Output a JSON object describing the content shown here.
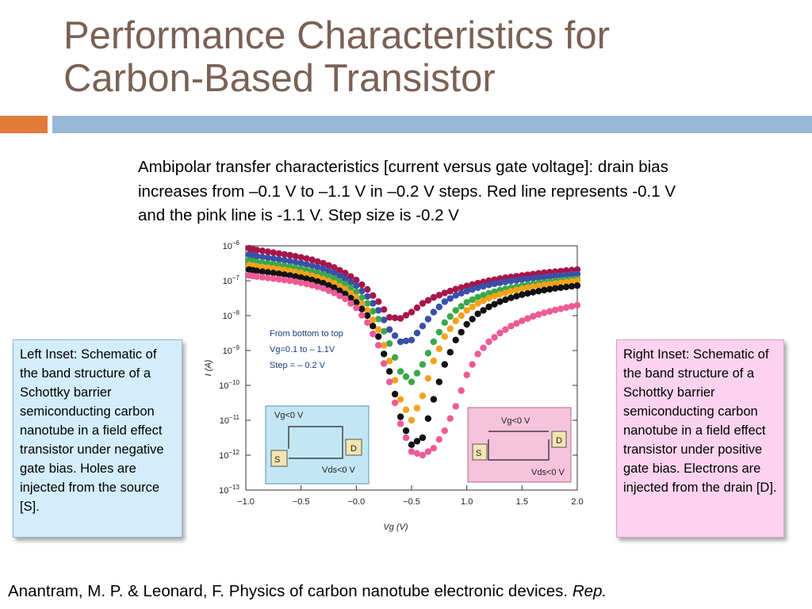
{
  "slide": {
    "title_line1": "Performance Characteristics for",
    "title_line2": "Carbon-Based Transistor",
    "caption": "Ambipolar transfer characteristics [current versus gate voltage]: drain bias increases from –0.1 V to –1.1 V in –0.2 V steps. Red line represents -0.1 V and the pink line is -1.1 V. Step size is -0.2 V",
    "left_inset_text": "Left Inset: Schematic of the band structure of a Schottky barrier semiconducting carbon nanotube in a field effect transistor under negative gate bias. Holes are injected from the source [S].",
    "right_inset_text": "Right Inset: Schematic of the band structure of a Schottky barrier semiconducting carbon nanotube in a field effect transistor under positive gate bias. Electrons are injected from the drain [D].",
    "citation_text": "Anantram, M. P. & Leonard, F. Physics of carbon nanotube electronic devices.",
    "citation_italic": "Rep.",
    "colors": {
      "title": "#7a6155",
      "accent_orange": "#e07b39",
      "accent_blue": "#98b8d8",
      "left_inset_bg": "#d3edfa",
      "right_inset_bg": "#fbd3ee"
    }
  },
  "chart_data": {
    "type": "scatter",
    "title": "",
    "xlabel": "V_g (V)",
    "ylabel": "I (A)",
    "xlim": [
      -1.0,
      2.0
    ],
    "ylim": [
      -13,
      -6
    ],
    "yscale": "log",
    "x_ticks": [
      "−1.0",
      "−0.5",
      "−0.0",
      "−0.5",
      "1.0",
      "1.5",
      "2.0"
    ],
    "y_ticks": [
      -13,
      -12,
      -11,
      -10,
      -9,
      -8,
      -7,
      -6
    ],
    "annotation_lines": [
      "From bottom to top",
      "Vg=0.1 to – 1.1V",
      "Step = – 0.2 V"
    ],
    "left_inset_schematic": {
      "gate_label": "Vg<0 V",
      "source_label": "S",
      "drain_label": "D",
      "bias_label": "Vds<0 V"
    },
    "right_inset_schematic": {
      "gate_label": "Vg<0 V",
      "source_label": "S",
      "drain_label": "D",
      "bias_label": "Vds<0 V"
    },
    "series": [
      {
        "color": "#a8154a",
        "x": [
          -0.97,
          -0.9,
          -0.8,
          -0.7,
          -0.6,
          -0.5,
          -0.4,
          -0.3,
          -0.2,
          -0.1,
          0.0,
          0.1,
          0.2,
          0.3,
          0.4,
          0.5,
          0.6,
          0.7,
          0.8,
          0.9,
          1.0,
          1.1,
          1.2,
          1.3,
          1.4,
          1.5,
          1.6,
          1.7,
          1.8,
          1.9,
          2.0
        ],
        "log_y": [
          -6.07,
          -6.12,
          -6.17,
          -6.22,
          -6.27,
          -6.33,
          -6.4,
          -6.5,
          -6.62,
          -6.78,
          -6.98,
          -7.25,
          -7.6,
          -8.05,
          -8.08,
          -7.9,
          -7.65,
          -7.48,
          -7.35,
          -7.24,
          -7.15,
          -7.07,
          -7.0,
          -6.94,
          -6.89,
          -6.85,
          -6.81,
          -6.77,
          -6.74,
          -6.71,
          -6.68
        ]
      },
      {
        "color": "#3a4fa8",
        "x": [
          -0.97,
          -0.9,
          -0.8,
          -0.7,
          -0.6,
          -0.5,
          -0.4,
          -0.3,
          -0.2,
          -0.1,
          0.0,
          0.1,
          0.2,
          0.3,
          0.4,
          0.5,
          0.6,
          0.7,
          0.8,
          0.9,
          1.0,
          1.1,
          1.2,
          1.3,
          1.4,
          1.5,
          1.6,
          1.7,
          1.8,
          1.9,
          2.0
        ],
        "log_y": [
          -6.25,
          -6.3,
          -6.34,
          -6.39,
          -6.44,
          -6.5,
          -6.57,
          -6.66,
          -6.78,
          -6.94,
          -7.14,
          -7.45,
          -7.85,
          -8.4,
          -8.75,
          -8.7,
          -8.3,
          -7.9,
          -7.6,
          -7.42,
          -7.3,
          -7.2,
          -7.12,
          -7.06,
          -7.01,
          -6.97,
          -6.93,
          -6.9,
          -6.87,
          -6.84,
          -6.81
        ]
      },
      {
        "color": "#3aa84a",
        "x": [
          -0.97,
          -0.9,
          -0.8,
          -0.7,
          -0.6,
          -0.5,
          -0.4,
          -0.3,
          -0.2,
          -0.1,
          0.0,
          0.1,
          0.2,
          0.3,
          0.4,
          0.5,
          0.6,
          0.7,
          0.8,
          0.9,
          1.0,
          1.1,
          1.2,
          1.3,
          1.4,
          1.5,
          1.6,
          1.7,
          1.8,
          1.9,
          2.0
        ],
        "log_y": [
          -6.42,
          -6.46,
          -6.5,
          -6.55,
          -6.6,
          -6.66,
          -6.73,
          -6.82,
          -6.94,
          -7.1,
          -7.32,
          -7.65,
          -8.1,
          -8.8,
          -9.6,
          -9.9,
          -9.4,
          -8.75,
          -8.2,
          -7.85,
          -7.62,
          -7.47,
          -7.36,
          -7.27,
          -7.2,
          -7.14,
          -7.09,
          -7.05,
          -7.01,
          -6.98,
          -6.95
        ]
      },
      {
        "color": "#f5a21a",
        "x": [
          -0.97,
          -0.9,
          -0.8,
          -0.7,
          -0.6,
          -0.5,
          -0.4,
          -0.3,
          -0.2,
          -0.1,
          0.0,
          0.1,
          0.2,
          0.3,
          0.4,
          0.5,
          0.6,
          0.7,
          0.8,
          0.9,
          1.0,
          1.1,
          1.2,
          1.3,
          1.4,
          1.5,
          1.6,
          1.7,
          1.8,
          1.9,
          2.0
        ],
        "log_y": [
          -6.55,
          -6.59,
          -6.63,
          -6.67,
          -6.72,
          -6.78,
          -6.86,
          -6.95,
          -7.07,
          -7.24,
          -7.48,
          -7.85,
          -8.4,
          -9.3,
          -10.4,
          -11.0,
          -10.3,
          -9.3,
          -8.6,
          -8.15,
          -7.85,
          -7.65,
          -7.5,
          -7.39,
          -7.3,
          -7.23,
          -7.17,
          -7.12,
          -7.08,
          -7.04,
          -7.0
        ]
      },
      {
        "color": "#111111",
        "x": [
          -0.97,
          -0.9,
          -0.8,
          -0.7,
          -0.6,
          -0.5,
          -0.4,
          -0.3,
          -0.2,
          -0.1,
          0.0,
          0.1,
          0.2,
          0.3,
          0.4,
          0.5,
          0.6,
          0.7,
          0.8,
          0.9,
          1.0,
          1.1,
          1.2,
          1.3,
          1.4,
          1.5,
          1.6,
          1.7,
          1.8,
          1.9,
          2.0
        ],
        "log_y": [
          -6.68,
          -6.72,
          -6.76,
          -6.8,
          -6.85,
          -6.91,
          -6.98,
          -7.07,
          -7.2,
          -7.38,
          -7.62,
          -8.0,
          -8.6,
          -9.6,
          -10.9,
          -11.7,
          -11.5,
          -10.4,
          -9.4,
          -8.7,
          -8.25,
          -7.95,
          -7.75,
          -7.6,
          -7.49,
          -7.4,
          -7.33,
          -7.27,
          -7.22,
          -7.18,
          -7.14
        ]
      },
      {
        "color": "#ee5a98",
        "x": [
          -0.97,
          -0.9,
          -0.8,
          -0.7,
          -0.6,
          -0.5,
          -0.4,
          -0.3,
          -0.2,
          -0.1,
          0.0,
          0.1,
          0.2,
          0.3,
          0.4,
          0.5,
          0.6,
          0.7,
          0.8,
          0.9,
          1.0,
          1.1,
          1.2,
          1.3,
          1.4,
          1.5,
          1.6,
          1.7,
          1.8,
          1.9,
          2.0
        ],
        "log_y": [
          -6.85,
          -6.88,
          -6.92,
          -6.96,
          -7.0,
          -7.06,
          -7.13,
          -7.22,
          -7.35,
          -7.52,
          -7.78,
          -8.2,
          -8.85,
          -9.9,
          -11.1,
          -11.9,
          -12.0,
          -11.8,
          -11.3,
          -10.6,
          -9.7,
          -9.1,
          -8.75,
          -8.5,
          -8.3,
          -8.15,
          -8.02,
          -7.92,
          -7.84,
          -7.77,
          -7.7
        ]
      }
    ]
  }
}
